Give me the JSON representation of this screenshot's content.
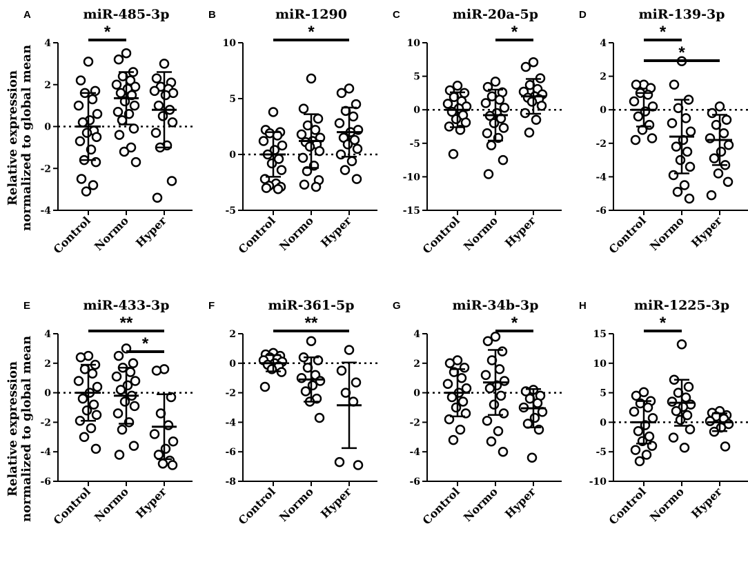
{
  "figure": {
    "ylabel_line1": "Relative expression",
    "ylabel_line2": "normalized to global mean"
  },
  "chart_data": [
    {
      "panel": "A",
      "title": "miR-485-3p",
      "type": "scatter",
      "categories": [
        "Control",
        "Normo",
        "Hyper"
      ],
      "ylim": [
        -4,
        4
      ],
      "yticks": [
        -4,
        -2,
        0,
        2,
        4
      ],
      "series": [
        {
          "name": "Control",
          "mean": 0.0,
          "sd": 1.6,
          "values": [
            3.1,
            2.2,
            1.7,
            1.6,
            1.3,
            1.0,
            0.6,
            0.3,
            0.2,
            -0.2,
            -0.3,
            -0.5,
            -0.7,
            -1.1,
            -1.6,
            -1.7,
            -2.5,
            -2.8,
            -3.1
          ]
        },
        {
          "name": "Normo",
          "mean": 1.35,
          "sd": 1.25,
          "values": [
            3.5,
            3.2,
            2.6,
            2.4,
            2.2,
            2.0,
            1.9,
            1.8,
            1.6,
            1.5,
            1.2,
            1.0,
            0.7,
            0.6,
            0.3,
            -0.1,
            -0.4,
            -1.0,
            -1.2,
            -1.7
          ]
        },
        {
          "name": "Hyper",
          "mean": 0.8,
          "sd": 1.8,
          "values": [
            3.0,
            2.3,
            2.1,
            1.9,
            1.8,
            1.7,
            1.6,
            1.5,
            1.0,
            0.8,
            0.5,
            0.2,
            -0.3,
            -0.9,
            -1.0,
            -2.6,
            -3.4
          ]
        }
      ],
      "significance": [
        {
          "from": 0,
          "to": 1,
          "label": "*"
        }
      ]
    },
    {
      "panel": "B",
      "title": "miR-1290",
      "type": "scatter",
      "categories": [
        "Control",
        "Normo",
        "Hyper"
      ],
      "ylim": [
        -5,
        10
      ],
      "yticks": [
        -5,
        0,
        5,
        10
      ],
      "series": [
        {
          "name": "Control",
          "mean": 0.0,
          "sd": 2.0,
          "values": [
            3.8,
            2.2,
            2.0,
            1.9,
            1.7,
            1.2,
            0.8,
            0.4,
            0.0,
            -0.4,
            -0.8,
            -1.4,
            -2.2,
            -2.6,
            -2.8,
            -2.9,
            -3.0,
            -3.1
          ]
        },
        {
          "name": "Normo",
          "mean": 1.2,
          "sd": 2.4,
          "values": [
            6.8,
            4.1,
            3.2,
            2.6,
            2.2,
            1.8,
            1.5,
            1.2,
            1.1,
            0.9,
            0.7,
            0.3,
            -0.3,
            -1.0,
            -1.5,
            -2.3,
            -2.7,
            -2.9
          ]
        },
        {
          "name": "Hyper",
          "mean": 2.0,
          "sd": 2.2,
          "values": [
            5.9,
            5.5,
            4.5,
            3.9,
            3.4,
            2.8,
            2.2,
            2.0,
            1.5,
            1.3,
            0.9,
            0.5,
            0.0,
            -0.6,
            -1.4,
            -2.2
          ]
        }
      ],
      "significance": [
        {
          "from": 0,
          "to": 2,
          "label": "*"
        }
      ]
    },
    {
      "panel": "C",
      "title": "miR-20a-5p",
      "type": "scatter",
      "categories": [
        "Control",
        "Normo",
        "Hyper"
      ],
      "ylim": [
        -15,
        10
      ],
      "yticks": [
        -15,
        -10,
        -5,
        0,
        5,
        10
      ],
      "series": [
        {
          "name": "Control",
          "mean": 0.0,
          "sd": 2.6,
          "values": [
            3.6,
            2.9,
            2.5,
            1.9,
            1.3,
            0.9,
            0.5,
            0.2,
            -0.3,
            -0.8,
            -1.4,
            -1.9,
            -2.5,
            -3.0,
            -6.6
          ]
        },
        {
          "name": "Normo",
          "mean": -0.8,
          "sd": 3.8,
          "values": [
            4.2,
            3.4,
            2.6,
            2.0,
            1.5,
            1.0,
            0.3,
            -0.5,
            -0.9,
            -1.3,
            -2.0,
            -2.7,
            -3.5,
            -4.2,
            -5.3,
            -7.5,
            -9.6
          ]
        },
        {
          "name": "Hyper",
          "mean": 2.0,
          "sd": 2.6,
          "values": [
            7.1,
            6.4,
            4.7,
            3.7,
            3.1,
            2.7,
            2.3,
            2.0,
            1.8,
            1.6,
            1.2,
            0.6,
            -0.5,
            -1.5,
            -3.4
          ]
        }
      ],
      "significance": [
        {
          "from": 1,
          "to": 2,
          "label": "*"
        }
      ]
    },
    {
      "panel": "D",
      "title": "miR-139-3p",
      "type": "scatter",
      "categories": [
        "Control",
        "Normo",
        "Hyper"
      ],
      "ylim": [
        -6,
        4
      ],
      "yticks": [
        -6,
        -4,
        -2,
        0,
        2,
        4
      ],
      "series": [
        {
          "name": "Control",
          "mean": 0.0,
          "sd": 1.0,
          "values": [
            1.5,
            1.5,
            1.3,
            1.0,
            0.9,
            0.5,
            0.2,
            -0.1,
            -0.4,
            -0.9,
            -1.2,
            -1.7,
            -1.8
          ]
        },
        {
          "name": "Normo",
          "mean": -1.6,
          "sd": 2.2,
          "values": [
            2.9,
            1.5,
            0.6,
            0.1,
            -0.5,
            -0.8,
            -1.3,
            -1.8,
            -2.2,
            -2.5,
            -3.0,
            -3.4,
            -3.9,
            -4.5,
            -4.9,
            -5.3
          ]
        },
        {
          "name": "Hyper",
          "mean": -1.8,
          "sd": 1.5,
          "values": [
            0.2,
            -0.2,
            -0.6,
            -0.9,
            -1.4,
            -1.7,
            -2.1,
            -2.5,
            -2.9,
            -3.3,
            -3.8,
            -4.3,
            -5.1
          ]
        }
      ],
      "significance": [
        {
          "from": 0,
          "to": 1,
          "label": "*"
        },
        {
          "from": 0,
          "to": 2,
          "label": "*"
        }
      ]
    },
    {
      "panel": "E",
      "title": "miR-433-3p",
      "type": "scatter",
      "categories": [
        "Control",
        "Normo",
        "Hyper"
      ],
      "ylim": [
        -6,
        4
      ],
      "yticks": [
        -6,
        -4,
        -2,
        0,
        2,
        4
      ],
      "series": [
        {
          "name": "Control",
          "mean": 0.0,
          "sd": 1.9,
          "values": [
            2.5,
            2.4,
            1.9,
            1.6,
            1.3,
            0.8,
            0.4,
            0.0,
            -0.4,
            -0.8,
            -1.2,
            -1.5,
            -1.9,
            -2.4,
            -3.0,
            -3.8
          ]
        },
        {
          "name": "Normo",
          "mean": -0.2,
          "sd": 1.9,
          "values": [
            3.0,
            2.5,
            2.0,
            1.7,
            1.4,
            1.1,
            0.8,
            0.5,
            0.2,
            -0.2,
            -0.6,
            -0.9,
            -1.4,
            -2.0,
            -2.5,
            -3.6,
            -4.2
          ]
        },
        {
          "name": "Hyper",
          "mean": -2.3,
          "sd": 2.2,
          "values": [
            1.6,
            1.5,
            -0.3,
            -1.4,
            -2.2,
            -2.8,
            -3.3,
            -3.8,
            -4.2,
            -4.6,
            -4.8,
            -4.9
          ]
        }
      ],
      "significance": [
        {
          "from": 0,
          "to": 2,
          "label": "**"
        },
        {
          "from": 1,
          "to": 2,
          "label": "*"
        }
      ]
    },
    {
      "panel": "F",
      "title": "miR-361-5p",
      "type": "scatter",
      "categories": [
        "Control",
        "Normo",
        "Hyper"
      ],
      "ylim": [
        -8,
        2
      ],
      "yticks": [
        -8,
        -6,
        -4,
        -2,
        0,
        2
      ],
      "series": [
        {
          "name": "Control",
          "mean": 0.0,
          "sd": 0.55,
          "values": [
            0.7,
            0.6,
            0.5,
            0.4,
            0.3,
            0.2,
            0.1,
            0.0,
            -0.1,
            -0.2,
            -0.4,
            -0.6,
            -1.6
          ]
        },
        {
          "name": "Normo",
          "mean": -1.1,
          "sd": 1.5,
          "values": [
            1.5,
            0.4,
            0.2,
            -0.3,
            -0.8,
            -1.0,
            -1.2,
            -1.5,
            -1.9,
            -2.4,
            -2.6,
            -3.7
          ]
        },
        {
          "name": "Hyper",
          "mean": -2.85,
          "sd": 2.9,
          "values": [
            0.9,
            -0.5,
            -1.3,
            -2.0,
            -2.6,
            -6.7,
            -6.9
          ]
        }
      ],
      "significance": [
        {
          "from": 0,
          "to": 2,
          "label": "**"
        }
      ]
    },
    {
      "panel": "G",
      "title": "miR-34b-3p",
      "type": "scatter",
      "categories": [
        "Control",
        "Normo",
        "Hyper"
      ],
      "ylim": [
        -6,
        4
      ],
      "yticks": [
        -6,
        -4,
        -2,
        0,
        2,
        4
      ],
      "series": [
        {
          "name": "Control",
          "mean": 0.0,
          "sd": 1.6,
          "values": [
            2.2,
            2.0,
            1.7,
            1.4,
            1.0,
            0.6,
            0.3,
            0.0,
            -0.3,
            -0.6,
            -1.0,
            -1.4,
            -1.8,
            -2.5,
            -3.2
          ]
        },
        {
          "name": "Normo",
          "mean": 0.7,
          "sd": 2.2,
          "values": [
            3.8,
            3.5,
            2.8,
            2.2,
            1.6,
            1.2,
            0.8,
            0.5,
            0.3,
            -0.2,
            -0.8,
            -1.4,
            -1.9,
            -2.6,
            -3.3,
            -4.0
          ]
        },
        {
          "name": "Hyper",
          "mean": -1.05,
          "sd": 1.3,
          "values": [
            0.2,
            0.1,
            -0.2,
            -0.4,
            -0.7,
            -1.0,
            -1.3,
            -1.7,
            -2.1,
            -2.5,
            -4.4
          ]
        }
      ],
      "significance": [
        {
          "from": 1,
          "to": 2,
          "label": "*"
        }
      ]
    },
    {
      "panel": "H",
      "title": "miR-1225-3p",
      "type": "scatter",
      "categories": [
        "Control",
        "Normo",
        "Hyper"
      ],
      "ylim": [
        -10,
        15
      ],
      "yticks": [
        -10,
        -5,
        0,
        5,
        10,
        15
      ],
      "series": [
        {
          "name": "Control",
          "mean": 0.0,
          "sd": 3.6,
          "values": [
            5.1,
            4.5,
            3.6,
            3.2,
            2.5,
            1.8,
            0.7,
            -0.5,
            -1.5,
            -2.4,
            -3.2,
            -4.0,
            -4.7,
            -5.5,
            -6.6
          ]
        },
        {
          "name": "Normo",
          "mean": 3.3,
          "sd": 3.9,
          "values": [
            13.2,
            7.2,
            6.0,
            5.0,
            4.2,
            3.5,
            3.0,
            2.6,
            1.9,
            1.2,
            0.4,
            -1.2,
            -2.6,
            -4.3
          ]
        },
        {
          "name": "Hyper",
          "mean": 0.0,
          "sd": 1.5,
          "values": [
            1.9,
            1.6,
            1.2,
            1.0,
            0.6,
            0.2,
            -0.3,
            -0.9,
            -1.6,
            -4.1
          ]
        }
      ],
      "significance": [
        {
          "from": 0,
          "to": 1,
          "label": "*"
        }
      ]
    }
  ]
}
